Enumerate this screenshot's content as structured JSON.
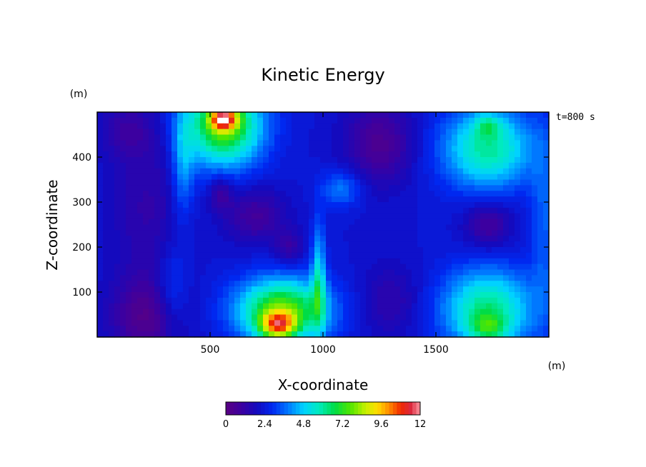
{
  "chart_data": {
    "type": "heatmap",
    "title": "Kinetic Energy",
    "xlabel": "X-coordinate",
    "ylabel": "Z-coordinate",
    "x_unit": "(m)",
    "y_unit": "(m)",
    "time_label": "t=800 s",
    "xlim": [
      0,
      2000
    ],
    "ylim": [
      0,
      500
    ],
    "x_ticks": [
      500,
      1000,
      1500
    ],
    "y_ticks": [
      100,
      200,
      300,
      400
    ],
    "x_tick_labels": [
      "500",
      "1000",
      "1500"
    ],
    "y_tick_labels": [
      "100",
      "200",
      "300",
      "400"
    ],
    "colorbar": {
      "min": 0,
      "max": 12,
      "ticks": [
        0,
        2.4,
        4.8,
        7.2,
        9.6,
        12
      ],
      "tick_labels": [
        "0",
        "2.4",
        "4.8",
        "7.2",
        "9.6",
        "12"
      ]
    },
    "background_value": 2.4,
    "blobs": [
      {
        "x": 220,
        "z": 40,
        "sx": 160,
        "sz": 90,
        "v": -1.8
      },
      {
        "x": 220,
        "z": 290,
        "sx": 160,
        "sz": 200,
        "v": -1.0
      },
      {
        "x": 130,
        "z": 460,
        "sx": 120,
        "sz": 60,
        "v": -1.0
      },
      {
        "x": 560,
        "z": 470,
        "sx": 170,
        "sz": 90,
        "v": 5.5
      },
      {
        "x": 560,
        "z": 485,
        "sx": 60,
        "sz": 25,
        "v": 5.0
      },
      {
        "x": 380,
        "z": 380,
        "sx": 50,
        "sz": 120,
        "v": 1.8
      },
      {
        "x": 820,
        "z": 60,
        "sx": 200,
        "sz": 70,
        "v": 5.5
      },
      {
        "x": 800,
        "z": 25,
        "sx": 80,
        "sz": 30,
        "v": 5.0
      },
      {
        "x": 980,
        "z": 130,
        "sx": 30,
        "sz": 120,
        "v": 2.8
      },
      {
        "x": 330,
        "z": 100,
        "sx": 70,
        "sz": 100,
        "v": 1.2
      },
      {
        "x": 1080,
        "z": 330,
        "sx": 90,
        "sz": 40,
        "v": 1.6
      },
      {
        "x": 700,
        "z": 270,
        "sx": 130,
        "sz": 60,
        "v": -1.5
      },
      {
        "x": 550,
        "z": 320,
        "sx": 50,
        "sz": 40,
        "v": -1.4
      },
      {
        "x": 850,
        "z": 200,
        "sx": 60,
        "sz": 40,
        "v": -1.2
      },
      {
        "x": 1250,
        "z": 430,
        "sx": 150,
        "sz": 90,
        "v": -1.8
      },
      {
        "x": 1300,
        "z": 80,
        "sx": 130,
        "sz": 80,
        "v": -1.0
      },
      {
        "x": 1730,
        "z": 420,
        "sx": 200,
        "sz": 90,
        "v": 3.8
      },
      {
        "x": 1730,
        "z": 470,
        "sx": 60,
        "sz": 25,
        "v": 1.5
      },
      {
        "x": 1730,
        "z": 60,
        "sx": 200,
        "sz": 90,
        "v": 4.0
      },
      {
        "x": 1730,
        "z": 20,
        "sx": 80,
        "sz": 30,
        "v": 2.0
      },
      {
        "x": 1730,
        "z": 250,
        "sx": 100,
        "sz": 50,
        "v": -1.6
      },
      {
        "x": 1980,
        "z": 250,
        "sx": 60,
        "sz": 200,
        "v": 1.2
      }
    ]
  }
}
